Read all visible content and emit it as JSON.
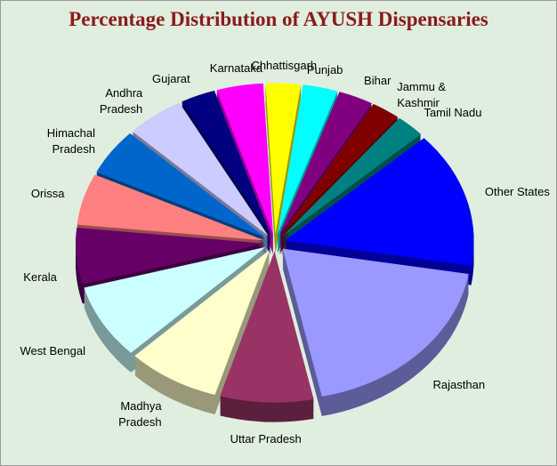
{
  "chart_data": {
    "type": "pie",
    "title": "Percentage Distribution of AYUSH Dispensaries",
    "categories": [
      "Chhattisgarh",
      "Punjab",
      "Bihar",
      "Jammu & Kashmir",
      "Tamil Nadu",
      "Other States",
      "Rajasthan",
      "Uttar Pradesh",
      "Madhya Pradesh",
      "West Bengal",
      "Kerala",
      "Orissa",
      "Himachal Pradesh",
      "Andhra Pradesh",
      "Gujarat",
      "Karnataka"
    ],
    "values": [
      3,
      3,
      3,
      2.5,
      2.5,
      14.5,
      19,
      8,
      8,
      8,
      6,
      5.5,
      5,
      5,
      3,
      4
    ],
    "colors": [
      "#ffff00",
      "#00ffff",
      "#800080",
      "#800000",
      "#008080",
      "#0000ff",
      "#9999ff",
      "#993366",
      "#ffffcc",
      "#ccffff",
      "#660066",
      "#ff8080",
      "#0066cc",
      "#ccccff",
      "#000080",
      "#ff00ff"
    ]
  }
}
